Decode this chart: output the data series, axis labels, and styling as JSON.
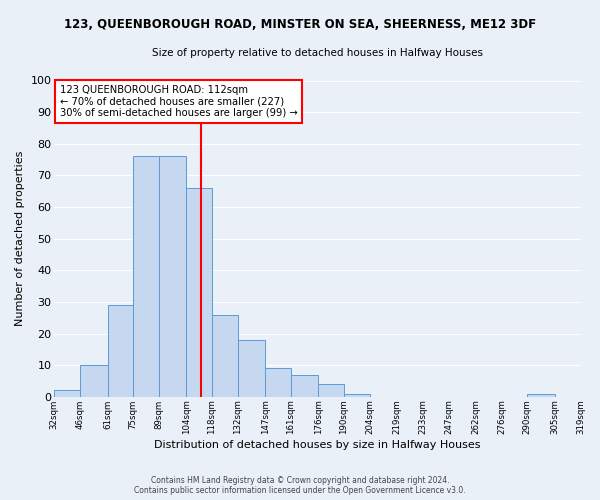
{
  "title": "123, QUEENBOROUGH ROAD, MINSTER ON SEA, SHEERNESS, ME12 3DF",
  "subtitle": "Size of property relative to detached houses in Halfway Houses",
  "xlabel": "Distribution of detached houses by size in Halfway Houses",
  "ylabel": "Number of detached properties",
  "bar_edges": [
    32,
    46,
    61,
    75,
    89,
    104,
    118,
    132,
    147,
    161,
    176,
    190,
    204,
    219,
    233,
    247,
    262,
    276,
    290,
    305,
    319
  ],
  "bar_heights": [
    2,
    10,
    29,
    76,
    76,
    66,
    26,
    18,
    9,
    7,
    4,
    1,
    0,
    0,
    0,
    0,
    0,
    0,
    1,
    0
  ],
  "bar_color": "#c5d8f0",
  "bar_edge_color": "#5b9bd5",
  "tick_labels": [
    "32sqm",
    "46sqm",
    "61sqm",
    "75sqm",
    "89sqm",
    "104sqm",
    "118sqm",
    "132sqm",
    "147sqm",
    "161sqm",
    "176sqm",
    "190sqm",
    "204sqm",
    "219sqm",
    "233sqm",
    "247sqm",
    "262sqm",
    "276sqm",
    "290sqm",
    "305sqm",
    "319sqm"
  ],
  "vline_x": 112,
  "vline_color": "red",
  "annotation_title": "123 QUEENBOROUGH ROAD: 112sqm",
  "annotation_line2": "← 70% of detached houses are smaller (227)",
  "annotation_line3": "30% of semi-detached houses are larger (99) →",
  "annotation_box_color": "red",
  "annotation_box_facecolor": "white",
  "ylim": [
    0,
    100
  ],
  "yticks": [
    0,
    10,
    20,
    30,
    40,
    50,
    60,
    70,
    80,
    90,
    100
  ],
  "bg_color": "#eaf0f8",
  "grid_color": "white",
  "footer_line1": "Contains HM Land Registry data © Crown copyright and database right 2024.",
  "footer_line2": "Contains public sector information licensed under the Open Government Licence v3.0."
}
